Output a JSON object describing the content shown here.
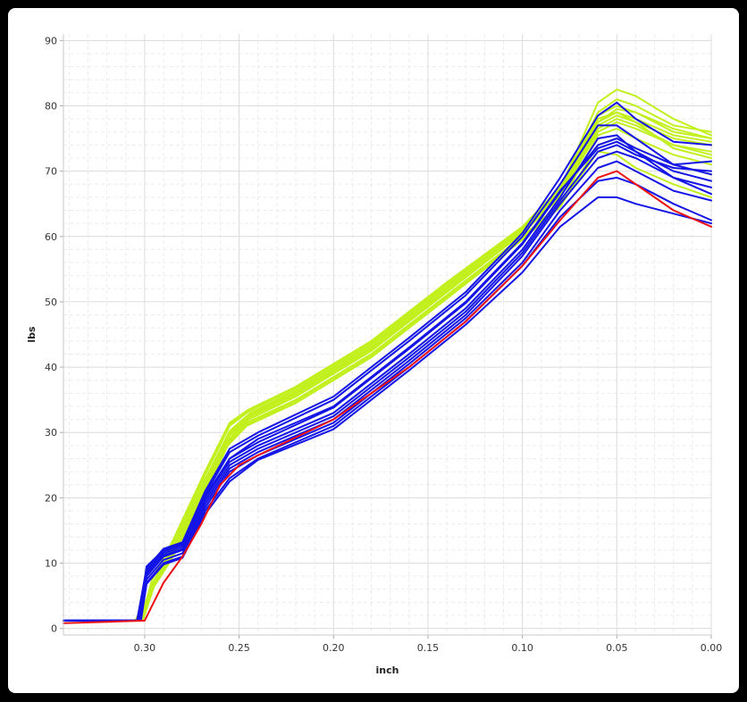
{
  "chart_data": {
    "type": "line",
    "title": "",
    "xlabel": "inch",
    "ylabel": "lbs",
    "xlim": [
      0.343,
      0.0
    ],
    "ylim": [
      -1,
      91
    ],
    "x_reversed": true,
    "x_ticks": [
      {
        "value": 0.3,
        "label": "0.30"
      },
      {
        "value": 0.25,
        "label": "0.25"
      },
      {
        "value": 0.2,
        "label": "0.20"
      },
      {
        "value": 0.15,
        "label": "0.15"
      },
      {
        "value": 0.1,
        "label": "0.10"
      },
      {
        "value": 0.05,
        "label": "0.05"
      },
      {
        "value": 0.0,
        "label": "0.00"
      }
    ],
    "y_ticks": [
      {
        "value": 0,
        "label": "0"
      },
      {
        "value": 10,
        "label": "10"
      },
      {
        "value": 20,
        "label": "20"
      },
      {
        "value": 30,
        "label": "30"
      },
      {
        "value": 40,
        "label": "40"
      },
      {
        "value": 50,
        "label": "50"
      },
      {
        "value": 60,
        "label": "60"
      },
      {
        "value": 70,
        "label": "70"
      },
      {
        "value": 80,
        "label": "80"
      },
      {
        "value": 90,
        "label": "90"
      }
    ],
    "grid": true,
    "legend": "none",
    "colors": {
      "group_a": "#c2f01e",
      "group_b": "#1414e6",
      "highlight": "#ee1111"
    },
    "series": [
      {
        "group": "group_a",
        "x": [
          0.343,
          0.302,
          0.296,
          0.285,
          0.268,
          0.255,
          0.245,
          0.22,
          0.18,
          0.14,
          0.1,
          0.08,
          0.06,
          0.05,
          0.04,
          0.02,
          0.0
        ],
        "y": [
          1.2,
          1.2,
          7.5,
          13.5,
          24,
          31.5,
          33.5,
          37,
          44,
          53,
          61.5,
          67.5,
          78,
          79,
          77.5,
          75,
          74
        ]
      },
      {
        "group": "group_a",
        "x": [
          0.343,
          0.301,
          0.295,
          0.284,
          0.267,
          0.254,
          0.244,
          0.22,
          0.18,
          0.14,
          0.1,
          0.08,
          0.06,
          0.05,
          0.04,
          0.02,
          0.0
        ],
        "y": [
          1.2,
          1.2,
          6.5,
          12.5,
          23,
          30.5,
          33,
          36.5,
          43.5,
          52.5,
          61,
          67,
          77.5,
          79.5,
          79,
          76,
          75
        ]
      },
      {
        "group": "group_a",
        "x": [
          0.343,
          0.304,
          0.296,
          0.285,
          0.268,
          0.255,
          0.245,
          0.22,
          0.18,
          0.14,
          0.1,
          0.08,
          0.06,
          0.05,
          0.04,
          0.02,
          0.0
        ],
        "y": [
          1.2,
          1.2,
          6.2,
          12,
          22,
          29.5,
          32,
          35.5,
          42.5,
          51.5,
          60.5,
          66,
          76.5,
          78,
          77,
          74,
          73
        ]
      },
      {
        "group": "group_a",
        "x": [
          0.343,
          0.303,
          0.297,
          0.286,
          0.269,
          0.256,
          0.246,
          0.22,
          0.18,
          0.14,
          0.1,
          0.08,
          0.06,
          0.05,
          0.04,
          0.02,
          0.0
        ],
        "y": [
          1.2,
          1.2,
          5.8,
          11,
          20.5,
          28.5,
          31.5,
          35,
          42,
          51,
          60,
          65,
          75.5,
          76.5,
          75,
          72.5,
          71
        ]
      },
      {
        "group": "group_a",
        "x": [
          0.343,
          0.302,
          0.296,
          0.285,
          0.268,
          0.255,
          0.245,
          0.22,
          0.18,
          0.14,
          0.1,
          0.08,
          0.06,
          0.05,
          0.04,
          0.02,
          0.0
        ],
        "y": [
          1.2,
          1.2,
          6.8,
          12.8,
          23.5,
          31,
          33.2,
          36.8,
          43.8,
          52.8,
          61.2,
          67.2,
          79,
          81,
          80,
          77,
          76
        ]
      },
      {
        "group": "group_a",
        "x": [
          0.343,
          0.301,
          0.295,
          0.285,
          0.268,
          0.255,
          0.245,
          0.22,
          0.18,
          0.14,
          0.1,
          0.08,
          0.06,
          0.05,
          0.04,
          0.02,
          0.0
        ],
        "y": [
          1.2,
          1.2,
          7,
          13,
          23.8,
          31.2,
          33.4,
          36.9,
          43.9,
          52.9,
          61.3,
          67.3,
          80.5,
          82.5,
          81.5,
          78,
          75.5
        ]
      },
      {
        "group": "group_a",
        "x": [
          0.343,
          0.305,
          0.297,
          0.286,
          0.269,
          0.256,
          0.246,
          0.22,
          0.18,
          0.14,
          0.1,
          0.08,
          0.06,
          0.05,
          0.04,
          0.02,
          0.0
        ],
        "y": [
          1.2,
          1.2,
          5.5,
          10.5,
          20,
          28,
          31,
          34.5,
          41.5,
          50.5,
          59.5,
          64.5,
          74,
          75,
          73.5,
          71,
          69.5
        ]
      },
      {
        "group": "group_a",
        "x": [
          0.343,
          0.304,
          0.296,
          0.285,
          0.268,
          0.255,
          0.245,
          0.22,
          0.18,
          0.14,
          0.1,
          0.08,
          0.06,
          0.05,
          0.04,
          0.02,
          0.0
        ],
        "y": [
          1.2,
          1.2,
          6,
          11.5,
          21.5,
          29,
          32,
          35.5,
          42.5,
          51.5,
          60.5,
          66,
          77,
          78.5,
          77.5,
          73.5,
          72
        ]
      },
      {
        "group": "group_a",
        "x": [
          0.343,
          0.303,
          0.296,
          0.285,
          0.268,
          0.255,
          0.245,
          0.22,
          0.18,
          0.14,
          0.1,
          0.08,
          0.06,
          0.05,
          0.04,
          0.02,
          0.0
        ],
        "y": [
          1.2,
          1.2,
          6.4,
          12.2,
          22.5,
          30,
          32.5,
          36,
          43,
          52,
          60.8,
          66.5,
          77.5,
          79,
          78,
          75.5,
          74.5
        ]
      },
      {
        "group": "group_a",
        "x": [
          0.343,
          0.302,
          0.296,
          0.285,
          0.268,
          0.255,
          0.245,
          0.22,
          0.18,
          0.14,
          0.1,
          0.08,
          0.06,
          0.05,
          0.04,
          0.02,
          0.0
        ],
        "y": [
          1.2,
          1.2,
          6.6,
          12.4,
          22.8,
          30.2,
          32.6,
          36.2,
          43.2,
          52.2,
          61,
          66.8,
          78.5,
          80,
          79,
          76.5,
          75
        ]
      },
      {
        "group": "group_a",
        "x": [
          0.343,
          0.304,
          0.297,
          0.286,
          0.269,
          0.256,
          0.246,
          0.22,
          0.18,
          0.14,
          0.1,
          0.08,
          0.06,
          0.05,
          0.04,
          0.02,
          0.0
        ],
        "y": [
          1.2,
          1.2,
          5.6,
          10.8,
          20.5,
          28.2,
          31.2,
          34.8,
          41.8,
          50.8,
          59.8,
          64.8,
          73,
          72.5,
          70.5,
          68,
          66
        ]
      },
      {
        "group": "group_a",
        "x": [
          0.343,
          0.303,
          0.296,
          0.285,
          0.268,
          0.255,
          0.245,
          0.22,
          0.18,
          0.14,
          0.1,
          0.08,
          0.06,
          0.05,
          0.04,
          0.02,
          0.0
        ],
        "y": [
          1.2,
          1.2,
          6.3,
          12.1,
          22.2,
          29.8,
          32.3,
          35.8,
          42.8,
          51.8,
          60.6,
          66.2,
          76,
          77.5,
          76.5,
          74,
          72.5
        ]
      },
      {
        "group": "group_b",
        "x": [
          0.343,
          0.304,
          0.299,
          0.29,
          0.28,
          0.268,
          0.255,
          0.24,
          0.2,
          0.16,
          0.13,
          0.1,
          0.08,
          0.06,
          0.05,
          0.04,
          0.02,
          0.0
        ],
        "y": [
          1.2,
          1.2,
          9,
          12,
          13,
          20,
          26,
          29,
          34,
          43,
          50,
          59,
          67,
          73.5,
          74.5,
          73,
          70,
          68.5
        ]
      },
      {
        "group": "group_b",
        "x": [
          0.343,
          0.304,
          0.299,
          0.29,
          0.28,
          0.268,
          0.255,
          0.24,
          0.2,
          0.16,
          0.13,
          0.1,
          0.08,
          0.06,
          0.05,
          0.04,
          0.02,
          0.0
        ],
        "y": [
          1.2,
          1.2,
          8,
          11,
          12,
          19,
          24.5,
          27,
          32,
          41,
          48,
          57,
          65,
          72,
          73,
          72,
          69,
          67.5
        ]
      },
      {
        "group": "group_b",
        "x": [
          0.343,
          0.304,
          0.299,
          0.29,
          0.28,
          0.268,
          0.255,
          0.24,
          0.2,
          0.16,
          0.13,
          0.1,
          0.08,
          0.06,
          0.05,
          0.04,
          0.02,
          0.0
        ],
        "y": [
          1.2,
          1.2,
          8.5,
          11.5,
          12.5,
          20,
          25.5,
          28,
          33,
          42,
          49,
          58,
          66,
          75,
          75.5,
          73,
          69,
          66.5
        ]
      },
      {
        "group": "group_b",
        "x": [
          0.343,
          0.303,
          0.299,
          0.29,
          0.28,
          0.268,
          0.255,
          0.24,
          0.2,
          0.16,
          0.13,
          0.1,
          0.08,
          0.06,
          0.05,
          0.04,
          0.02,
          0.0
        ],
        "y": [
          1.2,
          1.2,
          7.5,
          10.5,
          11.5,
          18.5,
          24,
          26.5,
          31.5,
          40.5,
          47.5,
          56,
          64,
          70.5,
          71.5,
          70,
          67,
          65.5
        ]
      },
      {
        "group": "group_b",
        "x": [
          0.343,
          0.302,
          0.299,
          0.29,
          0.28,
          0.268,
          0.255,
          0.24,
          0.2,
          0.16,
          0.13,
          0.1,
          0.08,
          0.06,
          0.05,
          0.04,
          0.02,
          0.0
        ],
        "y": [
          1.2,
          1.2,
          7,
          10,
          11,
          18,
          23,
          26,
          31,
          40,
          47,
          55.5,
          63,
          68.5,
          69,
          68,
          65,
          62.5
        ]
      },
      {
        "group": "group_b",
        "x": [
          0.343,
          0.302,
          0.299,
          0.29,
          0.28,
          0.268,
          0.255,
          0.24,
          0.2,
          0.16,
          0.13,
          0.1,
          0.08,
          0.06,
          0.05,
          0.04,
          0.02,
          0.0
        ],
        "y": [
          1.2,
          1.2,
          6.8,
          9.8,
          10.8,
          17.5,
          22.5,
          25.8,
          30.5,
          39.5,
          46.5,
          54.5,
          61.5,
          66,
          66,
          65,
          63.5,
          62
        ]
      },
      {
        "group": "group_b",
        "x": [
          0.343,
          0.303,
          0.299,
          0.29,
          0.28,
          0.268,
          0.255,
          0.24,
          0.2,
          0.16,
          0.13,
          0.1,
          0.08,
          0.06,
          0.05,
          0.04,
          0.02,
          0.0
        ],
        "y": [
          1.2,
          1.2,
          9.5,
          12,
          13,
          20.5,
          27,
          29.5,
          35,
          44,
          51,
          60,
          68,
          77,
          77,
          75,
          71,
          69.5
        ]
      },
      {
        "group": "group_b",
        "x": [
          0.343,
          0.304,
          0.299,
          0.29,
          0.28,
          0.268,
          0.255,
          0.24,
          0.2,
          0.16,
          0.13,
          0.1,
          0.08,
          0.06,
          0.05,
          0.04,
          0.02,
          0.0
        ],
        "y": [
          1.2,
          1.2,
          9.2,
          12.2,
          13.2,
          21,
          27.5,
          30,
          35.5,
          44.5,
          51.5,
          60.5,
          69,
          78.5,
          80.5,
          78,
          74.5,
          74
        ]
      },
      {
        "group": "group_b",
        "x": [
          0.343,
          0.303,
          0.299,
          0.29,
          0.28,
          0.268,
          0.255,
          0.24,
          0.2,
          0.16,
          0.13,
          0.1,
          0.08,
          0.06,
          0.05,
          0.04,
          0.02,
          0.0
        ],
        "y": [
          1.2,
          1.2,
          8.2,
          11.2,
          12.2,
          19.5,
          25,
          27.5,
          32.5,
          41.5,
          48.5,
          57.5,
          65.5,
          73,
          74,
          72.5,
          70.5,
          70
        ]
      },
      {
        "group": "group_b",
        "x": [
          0.343,
          0.304,
          0.299,
          0.29,
          0.28,
          0.268,
          0.255,
          0.24,
          0.2,
          0.16,
          0.13,
          0.1,
          0.08,
          0.06,
          0.05,
          0.04,
          0.02,
          0.0
        ],
        "y": [
          1.2,
          1.2,
          8.8,
          11.8,
          12.8,
          20.2,
          26,
          28.5,
          33.8,
          42.8,
          49.8,
          58.8,
          66.8,
          74,
          75,
          73.5,
          71,
          71.5
        ]
      },
      {
        "group": "highlight",
        "x": [
          0.343,
          0.3,
          0.29,
          0.28,
          0.27,
          0.26,
          0.25,
          0.24,
          0.2,
          0.16,
          0.13,
          0.1,
          0.08,
          0.06,
          0.05,
          0.045,
          0.02,
          0.0
        ],
        "y": [
          0.8,
          1.2,
          7,
          11,
          16,
          22,
          25,
          26.5,
          32,
          40,
          47,
          55.5,
          62.5,
          69,
          70,
          69,
          64,
          61.5
        ]
      }
    ]
  }
}
